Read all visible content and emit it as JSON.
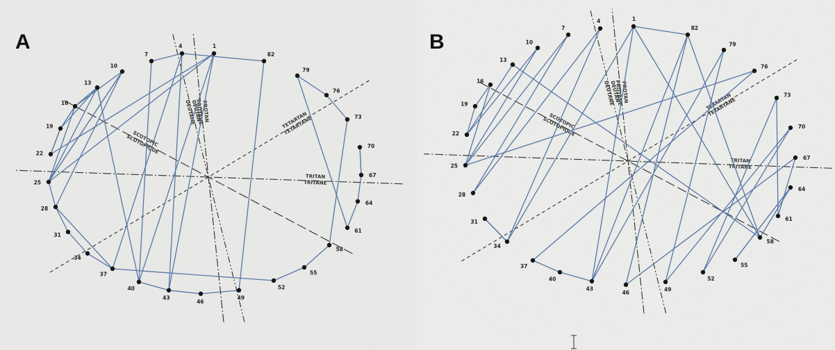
{
  "panels": [
    {
      "id": "A",
      "letter": "A",
      "center": [
        300,
        255
      ],
      "caps": [
        {
          "label": "1",
          "pos": [
            308,
            77
          ]
        },
        {
          "label": "4",
          "pos": [
            262,
            77
          ]
        },
        {
          "label": "7",
          "pos": [
            218,
            88
          ]
        },
        {
          "label": "10",
          "pos": [
            176,
            103
          ]
        },
        {
          "label": "13",
          "pos": [
            140,
            126
          ]
        },
        {
          "label": "16",
          "pos": [
            108,
            153
          ]
        },
        {
          "label": "19",
          "pos": [
            87,
            185
          ]
        },
        {
          "label": "22",
          "pos": [
            73,
            222
          ]
        },
        {
          "label": "25",
          "pos": [
            70,
            262
          ]
        },
        {
          "label": "28",
          "pos": [
            80,
            298
          ]
        },
        {
          "label": "31",
          "pos": [
            98,
            334
          ]
        },
        {
          "label": "34",
          "pos": [
            126,
            365
          ]
        },
        {
          "label": "37",
          "pos": [
            162,
            387
          ]
        },
        {
          "label": "40",
          "pos": [
            200,
            406
          ]
        },
        {
          "label": "43",
          "pos": [
            243,
            418
          ]
        },
        {
          "label": "46",
          "pos": [
            289,
            423
          ]
        },
        {
          "label": "49",
          "pos": [
            344,
            418
          ]
        },
        {
          "label": "52",
          "pos": [
            394,
            404
          ]
        },
        {
          "label": "55",
          "pos": [
            438,
            385
          ]
        },
        {
          "label": "58",
          "pos": [
            474,
            353
          ]
        },
        {
          "label": "61",
          "pos": [
            500,
            328
          ]
        },
        {
          "label": "64",
          "pos": [
            515,
            290
          ]
        },
        {
          "label": "67",
          "pos": [
            520,
            252
          ]
        },
        {
          "label": "70",
          "pos": [
            518,
            212
          ]
        },
        {
          "label": "73",
          "pos": [
            500,
            172
          ]
        },
        {
          "label": "76",
          "pos": [
            470,
            137
          ]
        },
        {
          "label": "79",
          "pos": [
            428,
            109
          ]
        },
        {
          "label": "82",
          "pos": [
            380,
            88
          ]
        }
      ],
      "sequence": [
        22,
        1,
        25,
        10,
        28,
        37,
        4,
        7,
        40,
        43,
        46,
        49,
        82,
        4,
        43,
        1,
        40,
        13,
        25,
        16,
        13,
        19,
        22,
        19,
        16,
        10,
        25,
        28,
        31,
        34,
        37,
        52,
        55,
        58,
        73,
        76,
        79,
        61,
        64,
        67,
        70,
        67
      ]
    },
    {
      "id": "B",
      "letter": "B",
      "center": [
        904,
        232
      ],
      "caps": [
        {
          "label": "1",
          "pos": [
            912,
            38
          ]
        },
        {
          "label": "4",
          "pos": [
            864,
            41
          ]
        },
        {
          "label": "7",
          "pos": [
            818,
            50
          ]
        },
        {
          "label": "10",
          "pos": [
            774,
            69
          ]
        },
        {
          "label": "13",
          "pos": [
            738,
            93
          ]
        },
        {
          "label": "16",
          "pos": [
            706,
            122
          ]
        },
        {
          "label": "19",
          "pos": [
            684,
            153
          ]
        },
        {
          "label": "22",
          "pos": [
            672,
            194
          ]
        },
        {
          "label": "25",
          "pos": [
            670,
            238
          ]
        },
        {
          "label": "28",
          "pos": [
            681,
            278
          ]
        },
        {
          "label": "31",
          "pos": [
            698,
            315
          ]
        },
        {
          "label": "34",
          "pos": [
            730,
            348
          ]
        },
        {
          "label": "37",
          "pos": [
            767,
            375
          ]
        },
        {
          "label": "40",
          "pos": [
            806,
            392
          ]
        },
        {
          "label": "43",
          "pos": [
            852,
            405
          ]
        },
        {
          "label": "46",
          "pos": [
            901,
            410
          ]
        },
        {
          "label": "49",
          "pos": [
            958,
            406
          ]
        },
        {
          "label": "52",
          "pos": [
            1012,
            392
          ]
        },
        {
          "label": "55",
          "pos": [
            1058,
            374
          ]
        },
        {
          "label": "58",
          "pos": [
            1094,
            342
          ]
        },
        {
          "label": "61",
          "pos": [
            1120,
            311
          ]
        },
        {
          "label": "64",
          "pos": [
            1138,
            270
          ]
        },
        {
          "label": "67",
          "pos": [
            1145,
            227
          ]
        },
        {
          "label": "70",
          "pos": [
            1138,
            184
          ]
        },
        {
          "label": "73",
          "pos": [
            1118,
            141
          ]
        },
        {
          "label": "76",
          "pos": [
            1086,
            102
          ]
        },
        {
          "label": "79",
          "pos": [
            1042,
            72
          ]
        },
        {
          "label": "82",
          "pos": [
            990,
            50
          ]
        }
      ],
      "sequence": [
        22,
        10,
        25,
        7,
        28,
        4,
        34,
        31,
        34,
        1,
        58,
        13,
        22,
        19,
        16,
        25,
        76,
        37,
        40,
        43,
        82,
        46,
        67,
        61,
        73,
        52,
        70,
        49,
        79,
        43,
        1,
        82,
        58,
        64,
        55,
        64
      ]
    }
  ],
  "axes": [
    {
      "name": "PROTAN",
      "sub": "PROTANE",
      "angle": 96,
      "style": "dashdot",
      "len": 210
    },
    {
      "name": "DEUTAN",
      "sub": "DEUTANE",
      "angle": 104,
      "style": "dashdot2",
      "len": 215
    },
    {
      "name": "SCOTOPIC",
      "sub": "SCOTOPIQUE",
      "angle": 152,
      "style": "longdash",
      "len": 235
    },
    {
      "name": "TRITAN",
      "sub": "TRITANE",
      "angle": 178,
      "style": "dashdot",
      "len": 280
    },
    {
      "name": "TETARTAN",
      "sub": "TETARTANE",
      "angle": 211,
      "style": "dashed",
      "len": 270
    }
  ],
  "colors": {
    "line": "#5576a6",
    "dot": "#151515",
    "axis": "#2b2b2b",
    "label": "#222222"
  }
}
